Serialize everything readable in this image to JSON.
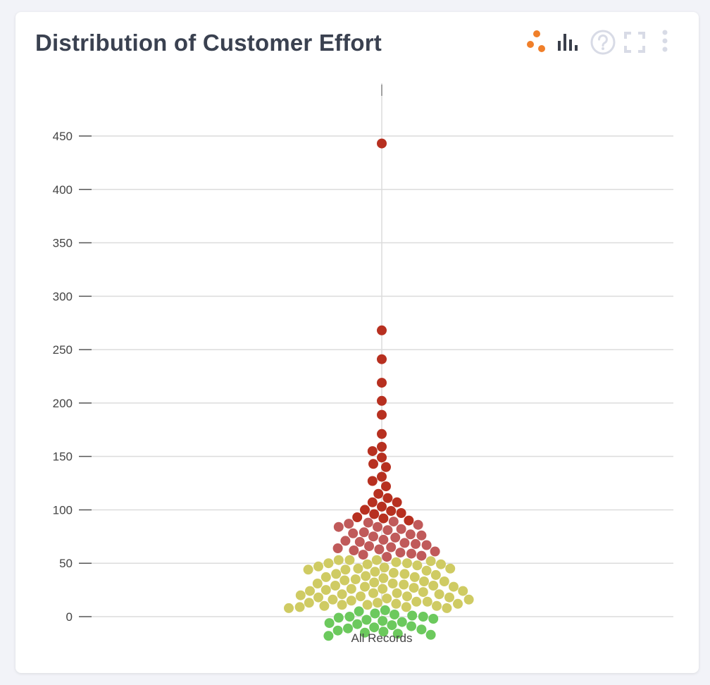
{
  "header": {
    "title": "Distribution of Customer Effort"
  },
  "toolbar": {
    "icons": [
      "scatter-view-icon",
      "bar-view-icon",
      "help-icon",
      "fullscreen-icon",
      "more-options-icon"
    ]
  },
  "colors": {
    "accent": "#f07f2a",
    "green": "#6cc95d",
    "yellow": "#cfcb63",
    "light_red": "#c05a5a",
    "dark_red": "#b73020",
    "grid": "#dcdcdc"
  },
  "chart_data": {
    "type": "scatter",
    "subtype": "beeswarm",
    "title": "Distribution of Customer Effort",
    "xlabel": "",
    "ylabel": "",
    "categories": [
      "All Records"
    ],
    "yticks": [
      0,
      50,
      100,
      150,
      200,
      250,
      300,
      350,
      400,
      450
    ],
    "ylim": [
      -25,
      470
    ],
    "grid": true,
    "legend": "none",
    "bands": [
      {
        "range": [
          -100,
          7
        ],
        "color": "#6cc95d"
      },
      {
        "range": [
          7,
          55
        ],
        "color": "#cfcb63"
      },
      {
        "range": [
          55,
          90
        ],
        "color": "#c05a5a"
      },
      {
        "range": [
          90,
          10000
        ],
        "color": "#b73020"
      }
    ],
    "values": [
      443,
      268,
      241,
      219,
      202,
      189,
      171,
      159,
      155,
      149,
      143,
      140,
      131,
      127,
      122,
      115,
      111,
      107,
      107,
      103,
      100,
      99,
      97,
      96,
      93,
      92,
      90,
      89,
      88,
      87,
      86,
      84,
      84,
      82,
      81,
      79,
      78,
      77,
      76,
      75,
      74,
      72,
      71,
      70,
      69,
      68,
      67,
      66,
      65,
      64,
      63,
      62,
      61,
      60,
      59,
      58,
      57,
      56,
      53,
      53,
      53,
      52,
      51,
      50,
      50,
      49,
      49,
      48,
      47,
      46,
      45,
      45,
      44,
      44,
      43,
      42,
      41,
      40,
      40,
      39,
      38,
      37,
      37,
      36,
      35,
      34,
      33,
      33,
      32,
      31,
      31,
      30,
      29,
      29,
      28,
      28,
      27,
      26,
      26,
      25,
      24,
      24,
      23,
      22,
      22,
      21,
      21,
      20,
      19,
      19,
      18,
      18,
      17,
      16,
      16,
      15,
      14,
      14,
      13,
      13,
      12,
      12,
      11,
      11,
      10,
      10,
      9,
      9,
      8,
      8,
      6,
      5,
      3,
      2,
      1,
      0,
      0,
      -1,
      -2,
      -3,
      -4,
      -5,
      -6,
      -7,
      -8,
      -9,
      -10,
      -11,
      -12,
      -13,
      -14,
      -15,
      -16,
      -17,
      -18
    ]
  }
}
